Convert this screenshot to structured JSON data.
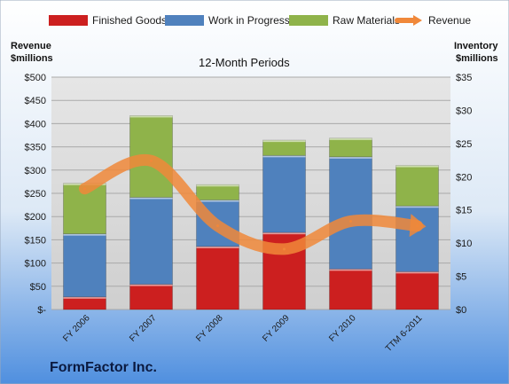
{
  "company": "FormFactor Inc.",
  "chart_data": {
    "type": "bar",
    "stacked": true,
    "title": "12-Month Periods",
    "categories": [
      "FY 2006",
      "FY 2007",
      "FY 2008",
      "FY 2009",
      "FY 2010",
      "TTM 6-2011"
    ],
    "y_left": {
      "label": "Revenue\n$millions",
      "range": [
        0,
        500
      ],
      "ticks": [
        "$-",
        "$50",
        "$100",
        "$150",
        "$200",
        "$250",
        "$300",
        "$350",
        "$400",
        "$450",
        "$500"
      ]
    },
    "y_right": {
      "label": "Inventory\n$millions",
      "range": [
        0,
        35
      ],
      "ticks": [
        "$0",
        "$5",
        "$10",
        "$15",
        "$20",
        "$25",
        "$30",
        "$35"
      ]
    },
    "series": [
      {
        "name": "Finished Goods",
        "axis": "right",
        "color": "#cc1f1f",
        "values": [
          1.9,
          3.8,
          9.5,
          11.6,
          6.1,
          5.7
        ]
      },
      {
        "name": "Work in Progress",
        "axis": "right",
        "color": "#4f81bd",
        "values": [
          9.5,
          13.1,
          7.0,
          11.6,
          16.9,
          9.9
        ]
      },
      {
        "name": "Raw Materials",
        "axis": "right",
        "color": "#8fb34a",
        "values": [
          7.6,
          12.3,
          2.3,
          2.3,
          2.8,
          6.1
        ]
      },
      {
        "name": "Revenue",
        "axis": "left",
        "type": "line",
        "color": "#f0883a",
        "values": [
          260,
          320,
          180,
          130,
          190,
          180
        ]
      }
    ],
    "legend_position": "top",
    "grid": true
  }
}
